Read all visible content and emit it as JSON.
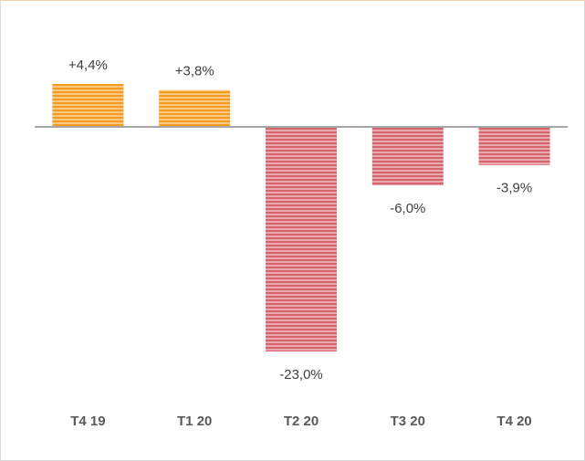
{
  "chart_data": {
    "type": "bar",
    "categories": [
      "T4 19",
      "T1 20",
      "T2 20",
      "T3 20",
      "T4 20"
    ],
    "values": [
      4.4,
      3.8,
      -23.0,
      -6.0,
      -3.9
    ],
    "value_labels": [
      "+4,4%",
      "+3,8%",
      "-23,0%",
      "-6,0%",
      "-3,9%"
    ],
    "colors": [
      "#f39b1f",
      "#f39b1f",
      "#d4636b",
      "#d4636b",
      "#d4636b"
    ],
    "grid": false
  }
}
